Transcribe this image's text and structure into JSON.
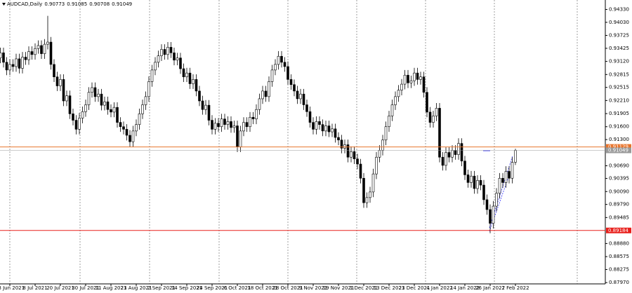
{
  "chart_data": {
    "type": "candlestick",
    "title": "AUDCAD,Daily",
    "categories": [
      null,
      null,
      null,
      "28 Jun 2021",
      null,
      null,
      null,
      null,
      null,
      null,
      null,
      "8 Jul 2021",
      null,
      null,
      null,
      null,
      null,
      null,
      null,
      "20 Jul 2021",
      null,
      null,
      null,
      null,
      null,
      null,
      null,
      "30 Jul 2021",
      null,
      null,
      null,
      null,
      null,
      null,
      null,
      "11 Aug 2021",
      null,
      null,
      null,
      null,
      null,
      null,
      null,
      "23 Aug 2021",
      null,
      null,
      null,
      null,
      null,
      null,
      null,
      "2 Sep 2021",
      null,
      null,
      null,
      null,
      null,
      null,
      null,
      "14 Sep 2021",
      null,
      null,
      null,
      null,
      null,
      null,
      null,
      "24 Sep 2021",
      null,
      null,
      null,
      null,
      null,
      null,
      null,
      "6 Oct 2021",
      null,
      null,
      null,
      null,
      null,
      null,
      null,
      "18 Oct 2021",
      null,
      null,
      null,
      null,
      null,
      null,
      null,
      "28 Oct 2021",
      null,
      null,
      null,
      null,
      null,
      null,
      null,
      "9 Nov 2021",
      null,
      null,
      null,
      null,
      null,
      null,
      null,
      "19 Nov 2021",
      null,
      null,
      null,
      null,
      null,
      null,
      null,
      "1 Dec 2021",
      null,
      null,
      null,
      null,
      null,
      null,
      null,
      "13 Dec 2021",
      null,
      null,
      null,
      null,
      null,
      null,
      null,
      "23 Dec 2021",
      null,
      null,
      null,
      null,
      null,
      null,
      null,
      "4 Jan 2022",
      null,
      null,
      null,
      null,
      null,
      null,
      null,
      "14 Jan 2022",
      null,
      null,
      null,
      null,
      null,
      null,
      null,
      "26 Jan 2022",
      null,
      null,
      null,
      null,
      null,
      null,
      null,
      "7 Feb 2022"
    ],
    "open": [
      0.932,
      0.9332,
      0.931,
      0.9292,
      0.9305,
      0.93,
      0.9318,
      0.9296,
      0.9322,
      0.9316,
      0.9335,
      0.9328,
      0.9342,
      0.9349,
      0.933,
      0.9352,
      0.9357,
      0.9305,
      0.9276,
      0.9255,
      0.927,
      0.922,
      0.9232,
      0.919,
      0.9175,
      0.9154,
      0.918,
      0.9195,
      0.9211,
      0.924,
      0.9251,
      0.923,
      0.9236,
      0.921,
      0.9218,
      0.92,
      0.9194,
      0.9205,
      0.917,
      0.916,
      0.9154,
      0.914,
      0.9125,
      0.915,
      0.9165,
      0.919,
      0.9211,
      0.923,
      0.9265,
      0.9292,
      0.931,
      0.9325,
      0.934,
      0.9328,
      0.9345,
      0.9332,
      0.9315,
      0.932,
      0.9295,
      0.9276,
      0.9285,
      0.926,
      0.927,
      0.9243,
      0.922,
      0.92,
      0.921,
      0.9175,
      0.9154,
      0.9168,
      0.916,
      0.9178,
      0.9165,
      0.9172,
      0.9158,
      0.9162,
      0.9113,
      0.915,
      0.917,
      0.916,
      0.9182,
      0.9178,
      0.92,
      0.9225,
      0.9243,
      0.923,
      0.9265,
      0.9292,
      0.9305,
      0.9324,
      0.931,
      0.93,
      0.927,
      0.9258,
      0.9243,
      0.9225,
      0.9236,
      0.9211,
      0.9195,
      0.917,
      0.9154,
      0.9172,
      0.9165,
      0.915,
      0.9162,
      0.9148,
      0.9155,
      0.9135,
      0.9129,
      0.911,
      0.9118,
      0.9089,
      0.9102,
      0.9085,
      0.9073,
      0.904,
      0.8983,
      0.8995,
      0.9008,
      0.905,
      0.9089,
      0.9105,
      0.9129,
      0.916,
      0.9185,
      0.9211,
      0.923,
      0.9245,
      0.9259,
      0.928,
      0.9262,
      0.9267,
      0.9285,
      0.927,
      0.9276,
      0.924,
      0.9194,
      0.917,
      0.9185,
      0.9203,
      0.9089,
      0.907,
      0.91,
      0.9089,
      0.9105,
      0.9095,
      0.9121,
      0.908,
      0.9048,
      0.903,
      0.9045,
      0.9016,
      0.9035,
      0.9024,
      0.899,
      0.8967,
      0.8935,
      0.8975,
      0.9005,
      0.904,
      0.903,
      0.9056,
      0.904,
      0.90773
    ],
    "high": [
      0.9344,
      0.9344,
      0.9322,
      0.9317,
      0.9317,
      0.933,
      0.933,
      0.9334,
      0.9334,
      0.9347,
      0.9347,
      0.9354,
      0.9361,
      0.9361,
      0.9364,
      0.9418,
      0.9369,
      0.9317,
      0.9288,
      0.9282,
      0.9282,
      0.9244,
      0.9244,
      0.9202,
      0.9187,
      0.9192,
      0.9207,
      0.9223,
      0.9252,
      0.9263,
      0.9263,
      0.9248,
      0.9248,
      0.923,
      0.923,
      0.9212,
      0.9217,
      0.9217,
      0.9182,
      0.9172,
      0.9166,
      0.9152,
      0.9162,
      0.9177,
      0.9202,
      0.9223,
      0.9242,
      0.9277,
      0.9304,
      0.9322,
      0.9337,
      0.9352,
      0.9352,
      0.9357,
      0.9357,
      0.9344,
      0.9332,
      0.9332,
      0.9307,
      0.9297,
      0.9297,
      0.9282,
      0.9282,
      0.9255,
      0.9232,
      0.9222,
      0.9222,
      0.9187,
      0.918,
      0.918,
      0.919,
      0.919,
      0.9184,
      0.9184,
      0.9174,
      0.9174,
      0.9162,
      0.9182,
      0.9182,
      0.9194,
      0.9194,
      0.9212,
      0.9237,
      0.9255,
      0.9255,
      0.9277,
      0.9304,
      0.9317,
      0.9336,
      0.9336,
      0.9322,
      0.9312,
      0.9282,
      0.927,
      0.9255,
      0.9248,
      0.9248,
      0.9223,
      0.9207,
      0.9182,
      0.9184,
      0.9184,
      0.9177,
      0.9174,
      0.9174,
      0.9167,
      0.9167,
      0.9147,
      0.9141,
      0.913,
      0.913,
      0.9114,
      0.9114,
      0.9097,
      0.9085,
      0.9052,
      0.9007,
      0.902,
      0.9062,
      0.9101,
      0.9117,
      0.9141,
      0.9172,
      0.9197,
      0.9223,
      0.9242,
      0.9257,
      0.9271,
      0.9292,
      0.9292,
      0.9279,
      0.9297,
      0.9297,
      0.9288,
      0.9288,
      0.9252,
      0.9206,
      0.9197,
      0.9215,
      0.9215,
      0.9101,
      0.9112,
      0.9112,
      0.9117,
      0.9117,
      0.9133,
      0.9133,
      0.9092,
      0.906,
      0.9057,
      0.9057,
      0.9047,
      0.9047,
      0.9036,
      0.9002,
      0.8979,
      0.8987,
      0.9017,
      0.9052,
      0.9052,
      0.9068,
      0.9068,
      0.9089,
      0.91085
    ],
    "low": [
      0.9308,
      0.9298,
      0.928,
      0.928,
      0.9288,
      0.9288,
      0.9284,
      0.9284,
      0.9304,
      0.9304,
      0.9316,
      0.9316,
      0.933,
      0.9318,
      0.9318,
      0.934,
      0.9293,
      0.9264,
      0.9243,
      0.9243,
      0.9208,
      0.9208,
      0.9178,
      0.9163,
      0.9142,
      0.9142,
      0.9168,
      0.9183,
      0.9199,
      0.9228,
      0.9218,
      0.9218,
      0.9198,
      0.9198,
      0.9188,
      0.9182,
      0.9182,
      0.9158,
      0.9148,
      0.9142,
      0.9128,
      0.9113,
      0.9113,
      0.9138,
      0.9153,
      0.9178,
      0.9199,
      0.9218,
      0.9253,
      0.928,
      0.9298,
      0.9313,
      0.9316,
      0.9316,
      0.932,
      0.9303,
      0.9303,
      0.9283,
      0.9264,
      0.9264,
      0.9248,
      0.9248,
      0.9231,
      0.9208,
      0.9188,
      0.9188,
      0.9163,
      0.9142,
      0.9142,
      0.9148,
      0.9148,
      0.9153,
      0.9153,
      0.9146,
      0.9146,
      0.9101,
      0.9101,
      0.9138,
      0.9148,
      0.9148,
      0.9166,
      0.9166,
      0.9188,
      0.9213,
      0.9218,
      0.9218,
      0.9253,
      0.928,
      0.9293,
      0.9298,
      0.9288,
      0.9258,
      0.9246,
      0.9231,
      0.9213,
      0.9213,
      0.9199,
      0.9183,
      0.9158,
      0.9142,
      0.9142,
      0.9153,
      0.9138,
      0.9138,
      0.9136,
      0.9136,
      0.9123,
      0.9117,
      0.9098,
      0.9098,
      0.9077,
      0.9077,
      0.9073,
      0.9061,
      0.9028,
      0.8971,
      0.8971,
      0.8983,
      0.8996,
      0.9038,
      0.9077,
      0.9093,
      0.9117,
      0.9148,
      0.9173,
      0.9199,
      0.9218,
      0.9233,
      0.9247,
      0.925,
      0.925,
      0.9255,
      0.9258,
      0.9258,
      0.9228,
      0.9182,
      0.9158,
      0.9158,
      0.9173,
      0.9077,
      0.9058,
      0.9058,
      0.9077,
      0.9077,
      0.9083,
      0.9083,
      0.9068,
      0.9036,
      0.9018,
      0.9018,
      0.9004,
      0.9004,
      0.9012,
      0.8978,
      0.8955,
      0.8912,
      0.8923,
      0.8963,
      0.8993,
      0.9018,
      0.9018,
      0.9028,
      0.9028,
      0.90708
    ],
    "close": [
      0.9332,
      0.931,
      0.9292,
      0.9305,
      0.93,
      0.9318,
      0.9296,
      0.9322,
      0.9316,
      0.9335,
      0.9328,
      0.9342,
      0.9349,
      0.933,
      0.9352,
      0.9357,
      0.9305,
      0.9276,
      0.9255,
      0.927,
      0.922,
      0.9232,
      0.919,
      0.9175,
      0.9154,
      0.918,
      0.9195,
      0.9211,
      0.924,
      0.9251,
      0.923,
      0.9236,
      0.921,
      0.9218,
      0.92,
      0.9194,
      0.9205,
      0.917,
      0.916,
      0.9154,
      0.914,
      0.9125,
      0.915,
      0.9165,
      0.919,
      0.9211,
      0.923,
      0.9265,
      0.9292,
      0.931,
      0.9325,
      0.934,
      0.9328,
      0.9345,
      0.9332,
      0.9315,
      0.932,
      0.9295,
      0.9276,
      0.9285,
      0.926,
      0.927,
      0.9243,
      0.922,
      0.92,
      0.921,
      0.9175,
      0.9154,
      0.9168,
      0.916,
      0.9178,
      0.9165,
      0.9172,
      0.9158,
      0.9162,
      0.9113,
      0.915,
      0.917,
      0.916,
      0.9182,
      0.9178,
      0.92,
      0.9225,
      0.9243,
      0.923,
      0.9265,
      0.9292,
      0.9305,
      0.9324,
      0.931,
      0.93,
      0.927,
      0.9258,
      0.9243,
      0.9225,
      0.9236,
      0.9211,
      0.9195,
      0.917,
      0.9154,
      0.9172,
      0.9165,
      0.915,
      0.9162,
      0.9148,
      0.9155,
      0.9135,
      0.9129,
      0.911,
      0.9118,
      0.9089,
      0.9102,
      0.9085,
      0.9073,
      0.904,
      0.8983,
      0.8995,
      0.9008,
      0.905,
      0.9089,
      0.9105,
      0.9129,
      0.916,
      0.9185,
      0.9211,
      0.923,
      0.9245,
      0.9259,
      0.928,
      0.9262,
      0.9267,
      0.9285,
      0.927,
      0.9276,
      0.924,
      0.9194,
      0.917,
      0.9185,
      0.9203,
      0.9089,
      0.907,
      0.91,
      0.9089,
      0.9105,
      0.9095,
      0.9121,
      0.908,
      0.9048,
      0.903,
      0.9045,
      0.9016,
      0.9035,
      0.9024,
      0.899,
      0.8967,
      0.8935,
      0.8975,
      0.9005,
      0.904,
      0.903,
      0.9056,
      0.904,
      0.9077,
      0.91049
    ],
    "ylim": [
      0.8794,
      0.9455
    ],
    "yticks": [
      {
        "value": 0.9433,
        "label": "0.94330"
      },
      {
        "value": 0.9403,
        "label": "0.94030"
      },
      0.93725,
      0.93425,
      {
        "value": 0.9312,
        "label": "0.93120"
      },
      0.92815,
      0.92515,
      {
        "value": 0.9221,
        "label": "0.92210"
      },
      0.91905,
      {
        "value": 0.916,
        "label": "0.91600"
      },
      {
        "value": 0.913,
        "label": "0.91300"
      },
      {
        "value": 0.9069,
        "label": "0.90690"
      },
      0.90395,
      {
        "value": 0.9009,
        "label": "0.90090"
      },
      {
        "value": 0.8979,
        "label": "0.89790"
      },
      0.89485,
      {
        "value": 0.8888,
        "label": "0.88880"
      },
      0.88575,
      0.88275,
      {
        "value": 0.8797,
        "label": "0.87970"
      }
    ],
    "levels": [
      {
        "value": 0.91129,
        "color": "#e8742c"
      },
      {
        "value": 0.91049,
        "color": "#9a9a9a"
      },
      {
        "value": 0.89184,
        "color": "#e8201c"
      }
    ]
  }
}
